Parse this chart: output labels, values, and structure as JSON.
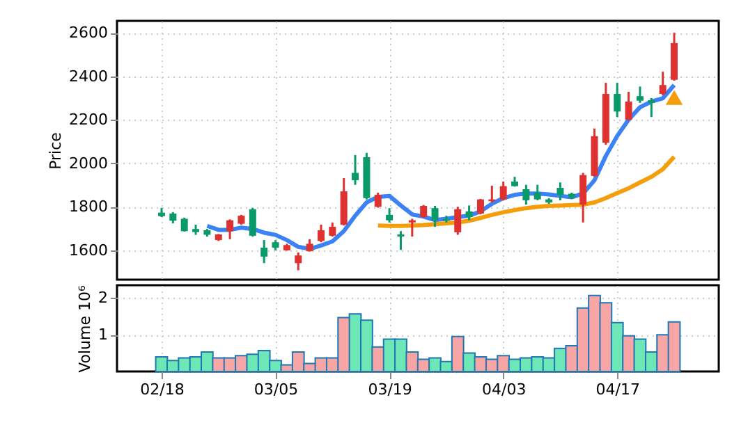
{
  "chart_data": [
    {
      "type": "candlestick",
      "ylabel": "Price",
      "ylim": [
        1465,
        2655
      ],
      "yticks": [
        1600,
        1800,
        2000,
        2200,
        2400,
        2600
      ],
      "grid": true,
      "tick_labels": "y",
      "categories": [
        null,
        null,
        null,
        null,
        null,
        null,
        null,
        null,
        null,
        null,
        null,
        null,
        null,
        null,
        null,
        null,
        null,
        null,
        null,
        null,
        null,
        null,
        null,
        null,
        null,
        null,
        null,
        null,
        null,
        null,
        null,
        null,
        null,
        null,
        null,
        null,
        null,
        null,
        null,
        null,
        null,
        null,
        null,
        null,
        null,
        null
      ],
      "ohlc": [
        [
          1773,
          1795,
          1753,
          1757
        ],
        [
          1769,
          1775,
          1724,
          1736
        ],
        [
          1745,
          1750,
          1686,
          1688
        ],
        [
          1698,
          1718,
          1671,
          1684
        ],
        [
          1692,
          1698,
          1663,
          1671
        ],
        [
          1647,
          1675,
          1643,
          1673
        ],
        [
          1688,
          1742,
          1651,
          1738
        ],
        [
          1722,
          1763,
          1718,
          1759
        ],
        [
          1789,
          1795,
          1663,
          1667
        ],
        [
          1612,
          1647,
          1541,
          1571
        ],
        [
          1637,
          1647,
          1600,
          1612
        ],
        [
          1600,
          1630,
          1598,
          1624
        ],
        [
          1541,
          1590,
          1508,
          1576
        ],
        [
          1596,
          1651,
          1594,
          1630
        ],
        [
          1643,
          1718,
          1637,
          1692
        ],
        [
          1667,
          1728,
          1663,
          1708
        ],
        [
          1718,
          1932,
          1714,
          1871
        ],
        [
          1956,
          2038,
          1901,
          1922
        ],
        [
          2028,
          2048,
          1834,
          1840
        ],
        [
          1800,
          1865,
          1796,
          1855
        ],
        [
          1763,
          1794,
          1728,
          1738
        ],
        [
          1673,
          1688,
          1602,
          1663
        ],
        [
          1728,
          1745,
          1663,
          1738
        ],
        [
          1753,
          1808,
          1749,
          1804
        ],
        [
          1794,
          1804,
          1708,
          1738
        ],
        [
          1743,
          1759,
          1728,
          1736
        ],
        [
          1683,
          1800,
          1671,
          1789
        ],
        [
          1779,
          1806,
          1738,
          1753
        ],
        [
          1769,
          1836,
          1765,
          1834
        ],
        [
          1826,
          1897,
          1820,
          1834
        ],
        [
          1834,
          1916,
          1830,
          1895
        ],
        [
          1916,
          1938,
          1893,
          1895
        ],
        [
          1881,
          1901,
          1810,
          1830
        ],
        [
          1865,
          1901,
          1830,
          1834
        ],
        [
          1834,
          1840,
          1814,
          1820
        ],
        [
          1887,
          1912,
          1830,
          1855
        ],
        [
          1860,
          1865,
          1836,
          1842
        ],
        [
          1810,
          1956,
          1728,
          1946
        ],
        [
          1942,
          2160,
          1938,
          2125
        ],
        [
          2095,
          2370,
          2085,
          2319
        ],
        [
          2319,
          2370,
          2213,
          2238
        ],
        [
          2201,
          2329,
          2197,
          2284
        ],
        [
          2309,
          2353,
          2278,
          2288
        ],
        [
          2290,
          2300,
          2213,
          2278
        ],
        [
          2319,
          2421,
          2313,
          2360
        ],
        [
          2384,
          2600,
          2380,
          2553
        ]
      ],
      "colors": [
        "#0a9a6a",
        "#0a9a6a",
        "#0a9a6a",
        "#0a9a6a",
        "#0a9a6a",
        "#e03131",
        "#e03131",
        "#e03131",
        "#0a9a6a",
        "#0a9a6a",
        "#0a9a6a",
        "#e03131",
        "#e03131",
        "#e03131",
        "#e03131",
        "#e03131",
        "#e03131",
        "#0a9a6a",
        "#0a9a6a",
        "#e03131",
        "#0a9a6a",
        "#0a9a6a",
        "#e03131",
        "#e03131",
        "#0a9a6a",
        "#0a9a6a",
        "#e03131",
        "#0a9a6a",
        "#e03131",
        "#e03131",
        "#e03131",
        "#0a9a6a",
        "#0a9a6a",
        "#0a9a6a",
        "#0a9a6a",
        "#0a9a6a",
        "#0a9a6a",
        "#e03131",
        "#e03131",
        "#e03131",
        "#0a9a6a",
        "#e03131",
        "#0a9a6a",
        "#0a9a6a",
        "#e03131",
        "#e03131"
      ],
      "series": [
        {
          "type": "line",
          "color": "#3b82f6",
          "line_style": "solid",
          "values": [
            null,
            null,
            null,
            null,
            1712,
            1694,
            1694,
            1704,
            1698,
            1681,
            1671,
            1647,
            1616,
            1606,
            1622,
            1641,
            1688,
            1759,
            1820,
            1846,
            1850,
            1806,
            1765,
            1755,
            1739,
            1745,
            1753,
            1759,
            1779,
            1814,
            1840,
            1855,
            1861,
            1861,
            1857,
            1850,
            1844,
            1861,
            1922,
            2034,
            2126,
            2201,
            2258,
            2284,
            2299,
            2360
          ]
        },
        {
          "type": "line",
          "color": "#f59e0b",
          "line_style": "solid",
          "values": [
            null,
            null,
            null,
            null,
            null,
            null,
            null,
            null,
            null,
            null,
            null,
            null,
            null,
            null,
            null,
            null,
            null,
            null,
            null,
            1714,
            1712,
            1712,
            1714,
            1716,
            1720,
            1724,
            1728,
            1736,
            1749,
            1763,
            1775,
            1785,
            1794,
            1800,
            1804,
            1806,
            1808,
            1810,
            1820,
            1840,
            1863,
            1885,
            1912,
            1938,
            1973,
            2030
          ]
        },
        {
          "type": "scatter",
          "color": "#f59e0b",
          "marker": "triangle",
          "values": [
            null,
            null,
            null,
            null,
            null,
            null,
            null,
            null,
            null,
            null,
            null,
            null,
            null,
            null,
            null,
            null,
            null,
            null,
            null,
            null,
            null,
            null,
            null,
            null,
            null,
            null,
            null,
            null,
            null,
            null,
            null,
            null,
            null,
            null,
            null,
            null,
            null,
            null,
            null,
            null,
            null,
            null,
            null,
            null,
            null,
            2303
          ]
        }
      ]
    },
    {
      "type": "bar",
      "ylabel": "Volume  10⁶",
      "ylim": [
        0,
        2.35
      ],
      "yticks": [
        1,
        2
      ],
      "grid": true,
      "categories": [
        "02/18",
        null,
        null,
        null,
        null,
        null,
        null,
        null,
        null,
        null,
        "03/05",
        null,
        null,
        null,
        null,
        null,
        null,
        null,
        null,
        null,
        "03/19",
        null,
        null,
        null,
        null,
        null,
        null,
        null,
        null,
        null,
        "04/03",
        null,
        null,
        null,
        null,
        null,
        null,
        null,
        null,
        null,
        "04/17",
        null,
        null,
        null,
        null,
        null
      ],
      "values": [
        0.4,
        0.3,
        0.37,
        0.4,
        0.53,
        0.37,
        0.37,
        0.43,
        0.47,
        0.57,
        0.3,
        0.18,
        0.53,
        0.22,
        0.37,
        0.37,
        1.47,
        1.57,
        1.4,
        0.67,
        0.88,
        0.88,
        0.53,
        0.33,
        0.37,
        0.27,
        0.95,
        0.5,
        0.4,
        0.33,
        0.43,
        0.33,
        0.37,
        0.4,
        0.37,
        0.63,
        0.7,
        1.73,
        2.07,
        1.87,
        1.33,
        0.97,
        0.88,
        0.53,
        1.0,
        1.35
      ],
      "colors": [
        "#6ee7b7",
        "#6ee7b7",
        "#6ee7b7",
        "#6ee7b7",
        "#6ee7b7",
        "#f8a5a5",
        "#f8a5a5",
        "#f8a5a5",
        "#6ee7b7",
        "#6ee7b7",
        "#6ee7b7",
        "#f8a5a5",
        "#f8a5a5",
        "#f8a5a5",
        "#f8a5a5",
        "#f8a5a5",
        "#f8a5a5",
        "#6ee7b7",
        "#6ee7b7",
        "#f8a5a5",
        "#6ee7b7",
        "#6ee7b7",
        "#f8a5a5",
        "#f8a5a5",
        "#6ee7b7",
        "#6ee7b7",
        "#f8a5a5",
        "#6ee7b7",
        "#f8a5a5",
        "#f8a5a5",
        "#f8a5a5",
        "#6ee7b7",
        "#6ee7b7",
        "#6ee7b7",
        "#6ee7b7",
        "#6ee7b7",
        "#f8a5a5",
        "#f8a5a5",
        "#f8a5a5",
        "#f8a5a5",
        "#6ee7b7",
        "#f8a5a5",
        "#6ee7b7",
        "#6ee7b7",
        "#f8a5a5",
        "#f8a5a5"
      ]
    }
  ]
}
